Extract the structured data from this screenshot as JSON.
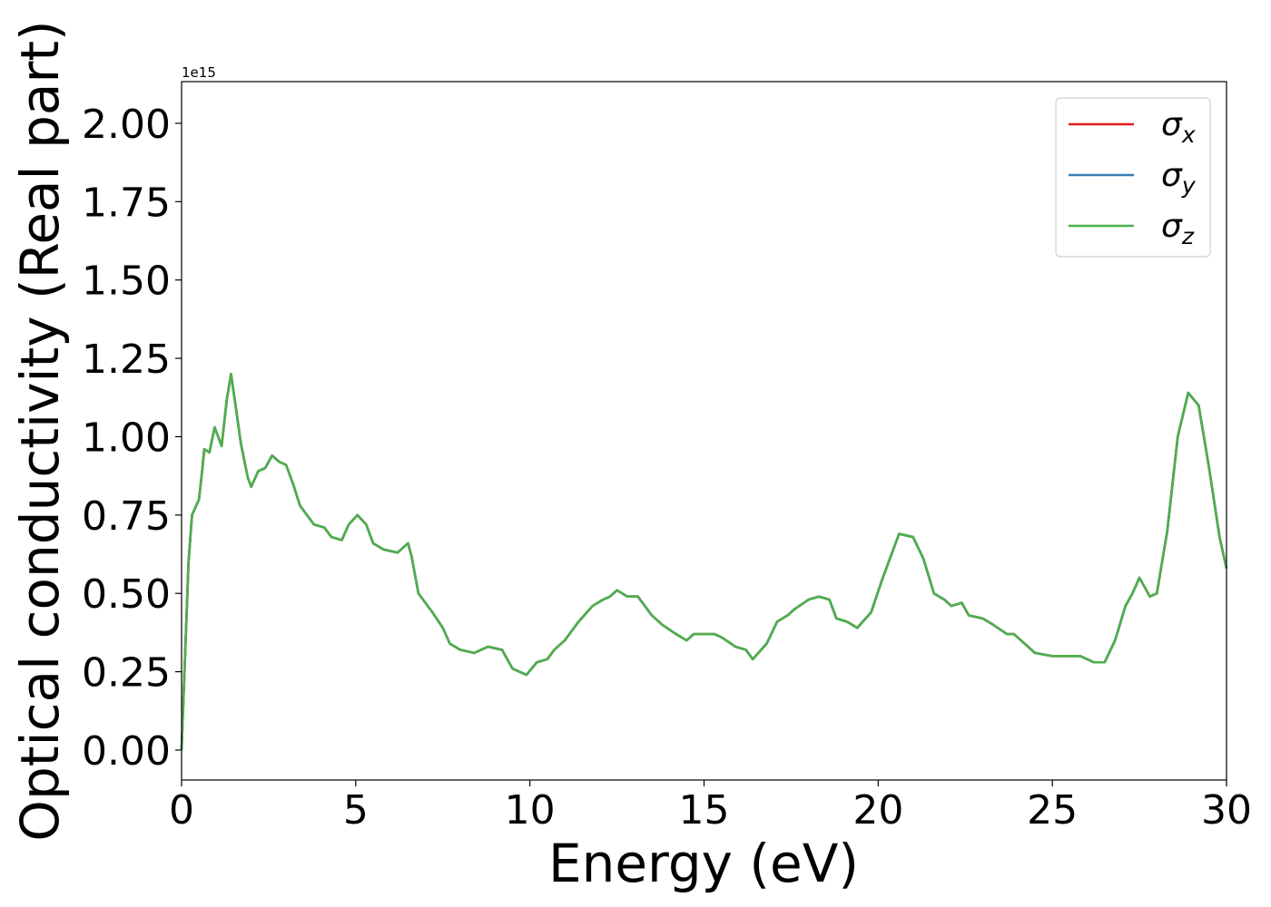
{
  "chart_data": {
    "type": "line",
    "x_label": "Energy (eV)",
    "y_label": "Optical conductivity (Real part)",
    "y_offset_label": "1e15",
    "x": [
      0,
      0.1,
      0.2,
      0.3,
      0.5,
      0.6,
      0.65,
      0.8,
      0.95,
      1.05,
      1.15,
      1.3,
      1.42,
      1.55,
      1.7,
      1.9,
      2.0,
      2.2,
      2.4,
      2.6,
      2.8,
      3.0,
      3.2,
      3.4,
      3.6,
      3.8,
      4.1,
      4.3,
      4.6,
      4.8,
      5.05,
      5.3,
      5.5,
      5.8,
      6.2,
      6.5,
      6.6,
      6.8,
      7.2,
      7.5,
      7.7,
      8.0,
      8.4,
      8.8,
      9.2,
      9.5,
      9.9,
      10.2,
      10.5,
      10.7,
      11.0,
      11.4,
      11.8,
      12.1,
      12.3,
      12.5,
      12.8,
      13.1,
      13.3,
      13.5,
      13.8,
      14.2,
      14.5,
      14.7,
      15.0,
      15.3,
      15.5,
      15.9,
      16.2,
      16.4,
      16.8,
      17.1,
      17.4,
      17.6,
      18.0,
      18.3,
      18.6,
      18.8,
      19.1,
      19.4,
      19.8,
      20.1,
      20.4,
      20.6,
      21.0,
      21.3,
      21.6,
      21.9,
      22.1,
      22.4,
      22.6,
      23.0,
      23.3,
      23.7,
      23.9,
      24.2,
      24.5,
      25.0,
      25.5,
      25.8,
      26.2,
      26.5,
      26.8,
      27.1,
      27.3,
      27.5,
      27.8,
      28.0,
      28.3,
      28.6,
      28.9,
      29.2,
      29.5,
      29.8,
      30.0
    ],
    "series": [
      {
        "name": "σx",
        "color": "#e41a1c",
        "values": [
          0,
          0.3,
          0.6,
          0.75,
          0.8,
          0.9,
          0.96,
          0.95,
          1.03,
          1.0,
          0.97,
          1.12,
          1.2,
          1.1,
          0.98,
          0.87,
          0.84,
          0.89,
          0.9,
          0.94,
          0.92,
          0.91,
          0.85,
          0.78,
          0.75,
          0.72,
          0.71,
          0.68,
          0.67,
          0.72,
          0.75,
          0.72,
          0.66,
          0.64,
          0.63,
          0.66,
          0.62,
          0.5,
          0.44,
          0.39,
          0.34,
          0.32,
          0.31,
          0.33,
          0.32,
          0.26,
          0.24,
          0.28,
          0.29,
          0.32,
          0.35,
          0.41,
          0.46,
          0.48,
          0.49,
          0.51,
          0.49,
          0.49,
          0.46,
          0.43,
          0.4,
          0.37,
          0.35,
          0.37,
          0.37,
          0.37,
          0.36,
          0.33,
          0.32,
          0.29,
          0.34,
          0.41,
          0.43,
          0.45,
          0.48,
          0.49,
          0.48,
          0.42,
          0.41,
          0.39,
          0.44,
          0.54,
          0.63,
          0.69,
          0.68,
          0.61,
          0.5,
          0.48,
          0.46,
          0.47,
          0.43,
          0.42,
          0.4,
          0.37,
          0.37,
          0.34,
          0.31,
          0.3,
          0.3,
          0.3,
          0.28,
          0.28,
          0.35,
          0.46,
          0.5,
          0.55,
          0.49,
          0.5,
          0.7,
          1.0,
          1.14,
          1.1,
          0.9,
          0.68,
          0.58
        ]
      },
      {
        "name": "σy",
        "color": "#377eb8",
        "values": [
          0,
          0.3,
          0.6,
          0.75,
          0.8,
          0.9,
          0.96,
          0.95,
          1.03,
          1.0,
          0.97,
          1.12,
          1.2,
          1.1,
          0.98,
          0.87,
          0.84,
          0.89,
          0.9,
          0.94,
          0.92,
          0.91,
          0.85,
          0.78,
          0.75,
          0.72,
          0.71,
          0.68,
          0.67,
          0.72,
          0.75,
          0.72,
          0.66,
          0.64,
          0.63,
          0.66,
          0.62,
          0.5,
          0.44,
          0.39,
          0.34,
          0.32,
          0.31,
          0.33,
          0.32,
          0.26,
          0.24,
          0.28,
          0.29,
          0.32,
          0.35,
          0.41,
          0.46,
          0.48,
          0.49,
          0.51,
          0.49,
          0.49,
          0.46,
          0.43,
          0.4,
          0.37,
          0.35,
          0.37,
          0.37,
          0.37,
          0.36,
          0.33,
          0.32,
          0.29,
          0.34,
          0.41,
          0.43,
          0.45,
          0.48,
          0.49,
          0.48,
          0.42,
          0.41,
          0.39,
          0.44,
          0.54,
          0.63,
          0.69,
          0.68,
          0.61,
          0.5,
          0.48,
          0.46,
          0.47,
          0.43,
          0.42,
          0.4,
          0.37,
          0.37,
          0.34,
          0.31,
          0.3,
          0.3,
          0.3,
          0.28,
          0.28,
          0.35,
          0.46,
          0.5,
          0.55,
          0.49,
          0.5,
          0.7,
          1.0,
          1.14,
          1.1,
          0.9,
          0.68,
          0.58
        ]
      },
      {
        "name": "σz",
        "color": "#4daf4a",
        "values": [
          0,
          0.3,
          0.6,
          0.75,
          0.8,
          0.9,
          0.96,
          0.95,
          1.03,
          1.0,
          0.97,
          1.12,
          1.2,
          1.1,
          0.98,
          0.87,
          0.84,
          0.89,
          0.9,
          0.94,
          0.92,
          0.91,
          0.85,
          0.78,
          0.75,
          0.72,
          0.71,
          0.68,
          0.67,
          0.72,
          0.75,
          0.72,
          0.66,
          0.64,
          0.63,
          0.66,
          0.62,
          0.5,
          0.44,
          0.39,
          0.34,
          0.32,
          0.31,
          0.33,
          0.32,
          0.26,
          0.24,
          0.28,
          0.29,
          0.32,
          0.35,
          0.41,
          0.46,
          0.48,
          0.49,
          0.51,
          0.49,
          0.49,
          0.46,
          0.43,
          0.4,
          0.37,
          0.35,
          0.37,
          0.37,
          0.37,
          0.36,
          0.33,
          0.32,
          0.29,
          0.34,
          0.41,
          0.43,
          0.45,
          0.48,
          0.49,
          0.48,
          0.42,
          0.41,
          0.39,
          0.44,
          0.54,
          0.63,
          0.69,
          0.68,
          0.61,
          0.5,
          0.48,
          0.46,
          0.47,
          0.43,
          0.42,
          0.4,
          0.37,
          0.37,
          0.34,
          0.31,
          0.3,
          0.3,
          0.3,
          0.28,
          0.28,
          0.35,
          0.46,
          0.5,
          0.55,
          0.49,
          0.5,
          0.7,
          1.0,
          1.14,
          1.1,
          0.9,
          0.68,
          0.58
        ]
      }
    ],
    "xlim": [
      0,
      30
    ],
    "xticks": [
      0,
      5,
      10,
      15,
      20,
      25,
      30
    ],
    "ylim": [
      -0.0955,
      2.133
    ],
    "yticks": [
      {
        "value": 0,
        "label": "0.00"
      },
      {
        "value": 0.25,
        "label": "0.25"
      },
      {
        "value": 0.5,
        "label": "0.50"
      },
      {
        "value": 0.75,
        "label": "0.75"
      },
      {
        "value": 1,
        "label": "1.00"
      },
      {
        "value": 1.25,
        "label": "1.25"
      },
      {
        "value": 1.5,
        "label": "1.50"
      },
      {
        "value": 1.75,
        "label": "1.75"
      },
      {
        "value": 2,
        "label": "2.00"
      }
    ],
    "grid": false,
    "legend": "upper right"
  }
}
